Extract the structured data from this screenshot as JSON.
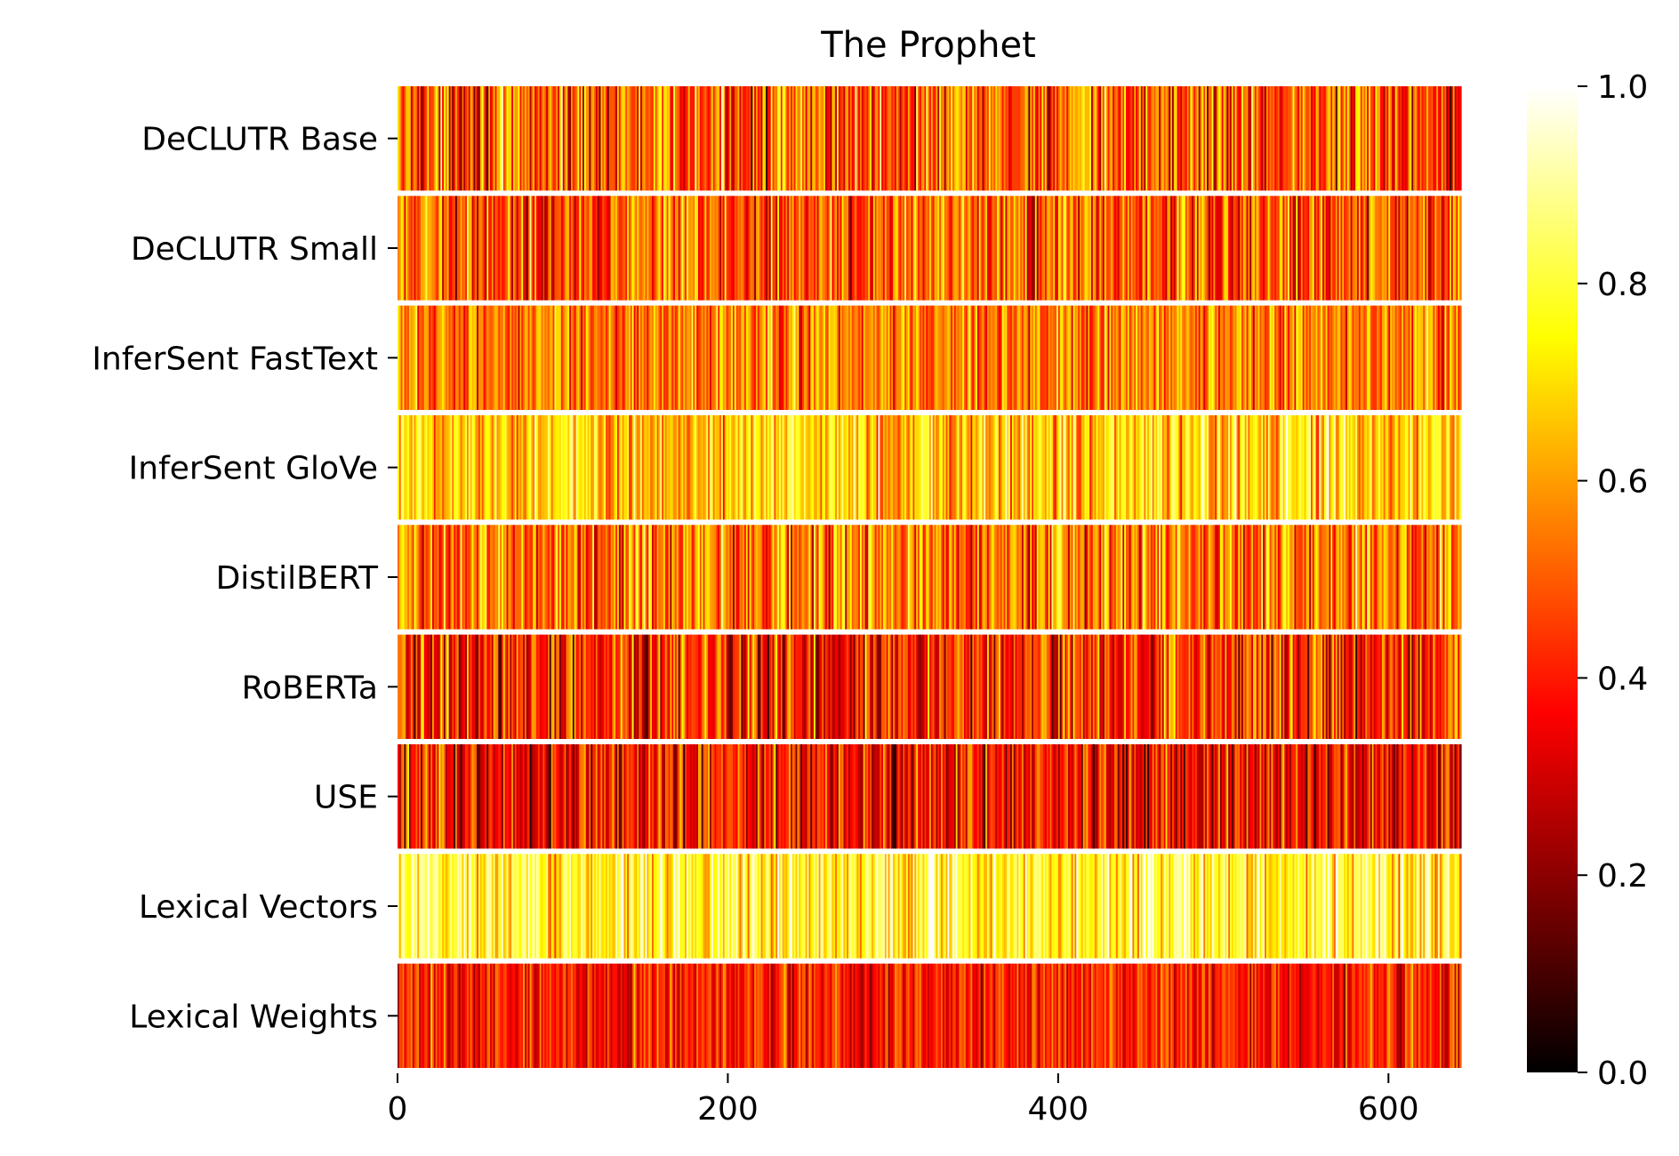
{
  "chart_data": {
    "type": "heatmap",
    "title": "The Prophet",
    "xlabel": "",
    "ylabel": "",
    "rows": [
      "DeCLUTR Base",
      "DeCLUTR Small",
      "InferSent FastText",
      "InferSent GloVe",
      "DistilBERT",
      "RoBERTa",
      "USE",
      "Lexical Vectors",
      "Lexical Weights"
    ],
    "n_columns": 644,
    "xlim": [
      0,
      644
    ],
    "x_ticks": [
      0,
      200,
      400,
      600
    ],
    "colorbar": {
      "min": 0.0,
      "max": 1.0,
      "ticks": [
        "0.0",
        "0.2",
        "0.4",
        "0.6",
        "0.8",
        "1.0"
      ]
    },
    "colormap": "hot",
    "row_mean_values": [
      0.5,
      0.5,
      0.55,
      0.68,
      0.55,
      0.42,
      0.38,
      0.78,
      0.4
    ],
    "row_spread": [
      0.16,
      0.14,
      0.12,
      0.13,
      0.15,
      0.15,
      0.14,
      0.12,
      0.1
    ],
    "grid": false,
    "colors": {
      "background": "#ffffff",
      "row_separator": "#ffffff",
      "text": "#000000"
    }
  }
}
